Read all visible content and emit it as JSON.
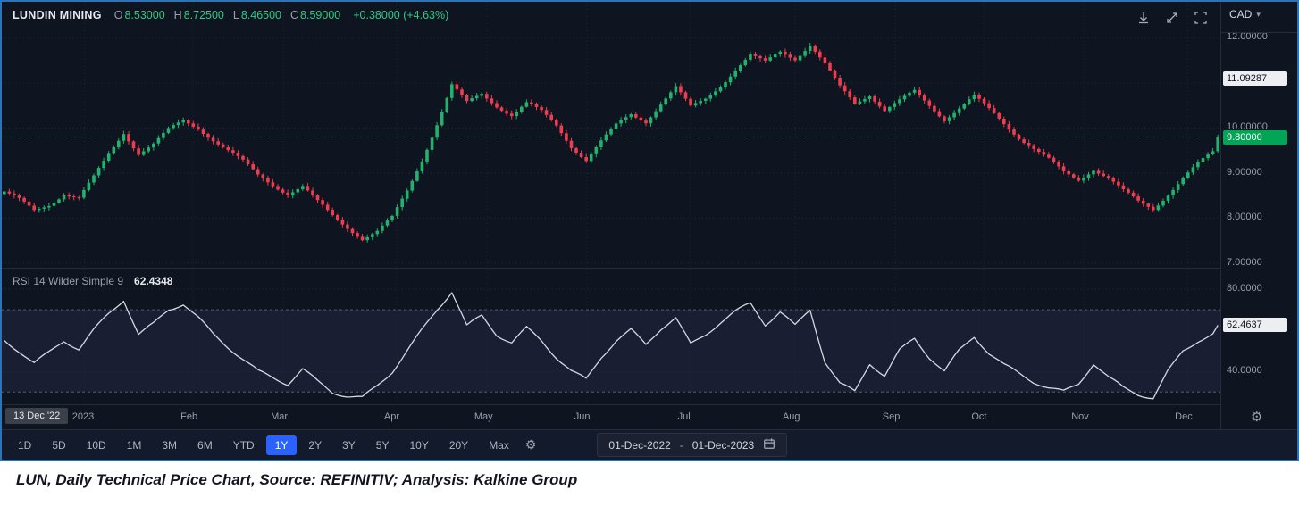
{
  "header": {
    "symbol": "LUNDIN MINING",
    "ohlc": [
      {
        "k": "O",
        "v": "8.53000"
      },
      {
        "k": "H",
        "v": "8.72500"
      },
      {
        "k": "L",
        "v": "8.46500"
      },
      {
        "k": "C",
        "v": "8.59000"
      }
    ],
    "change": "+0.38000 (+4.63%)",
    "currency": "CAD"
  },
  "rsi_header": {
    "title": "RSI 14 Wilder Simple 9",
    "value": "62.4348"
  },
  "price_axis": {
    "ticks": [
      {
        "label": "12.00000",
        "value": 12
      },
      {
        "label": "10.00000",
        "value": 10
      },
      {
        "label": "9.00000",
        "value": 9
      },
      {
        "label": "8.00000",
        "value": 8
      },
      {
        "label": "7.00000",
        "value": 7
      }
    ],
    "marker": {
      "label": "11.09287",
      "value": 11.09287
    },
    "last": {
      "label": "9.80000",
      "value": 9.8
    }
  },
  "rsi_axis": {
    "ticks": [
      {
        "label": "80.0000",
        "value": 80
      },
      {
        "label": "40.0000",
        "value": 40
      }
    ],
    "last": {
      "label": "62.4637",
      "value": 62.4637
    }
  },
  "time_axis": {
    "crosshair": "13 Dec '22",
    "labels": [
      {
        "t": "2023",
        "f": 0.068
      },
      {
        "t": "Feb",
        "f": 0.157
      },
      {
        "t": "Mar",
        "f": 0.231
      },
      {
        "t": "Apr",
        "f": 0.324
      },
      {
        "t": "May",
        "f": 0.398
      },
      {
        "t": "Jun",
        "f": 0.48
      },
      {
        "t": "Jul",
        "f": 0.565
      },
      {
        "t": "Aug",
        "f": 0.651
      },
      {
        "t": "Sep",
        "f": 0.733
      },
      {
        "t": "Oct",
        "f": 0.806
      },
      {
        "t": "Nov",
        "f": 0.888
      },
      {
        "t": "Dec",
        "f": 0.973
      }
    ]
  },
  "toolbar": {
    "periods": [
      "1D",
      "5D",
      "10D",
      "1M",
      "3M",
      "6M",
      "YTD",
      "1Y",
      "2Y",
      "3Y",
      "5Y",
      "10Y",
      "20Y",
      "Max"
    ],
    "active": "1Y",
    "date_from": "01-Dec-2022",
    "date_sep": "-",
    "date_to": "01-Dec-2023"
  },
  "caption": "LUN, Daily Technical Price Chart, Source: REFINITIV; Analysis: Kalkine Group",
  "colors": {
    "up": "#23b26d",
    "down": "#ef3d4f",
    "accent": "#2962ff",
    "last_badge": "#00a556",
    "rsi_line": "#d6d9e0",
    "background": "#0e1420"
  },
  "chart_data": {
    "type": "candlestick",
    "title": "LUNDIN MINING daily price, CAD, 13-Dec-2022 to 01-Dec-2023",
    "x_unit": "trading-day index from 13-Dec-2022 (anchors sampled every 3 trading days)",
    "n_days": 245,
    "anchor_step": 3,
    "ylim": [
      6.9,
      12.8
    ],
    "open_first": 8.53,
    "last_close": 9.8,
    "close_anchors": [
      8.59,
      8.4,
      8.15,
      8.3,
      8.55,
      8.45,
      8.9,
      9.4,
      9.9,
      9.45,
      9.65,
      9.95,
      10.15,
      10.0,
      9.75,
      9.5,
      9.25,
      8.95,
      8.75,
      8.55,
      8.7,
      8.35,
      8.05,
      7.8,
      7.55,
      7.7,
      8.0,
      8.6,
      9.3,
      10.1,
      10.95,
      10.55,
      10.75,
      10.5,
      10.3,
      10.55,
      10.35,
      10.05,
      9.6,
      9.3,
      9.7,
      10.05,
      10.3,
      10.15,
      10.55,
      10.9,
      10.45,
      10.65,
      10.95,
      11.3,
      11.6,
      11.45,
      11.7,
      11.55,
      11.85,
      11.4,
      10.9,
      10.55,
      10.75,
      10.4,
      10.6,
      10.8,
      10.5,
      10.2,
      10.45,
      10.7,
      10.4,
      10.1,
      9.8,
      9.55,
      9.3,
      9.0,
      8.85,
      9.1,
      8.9,
      8.6,
      8.35,
      8.2,
      8.55,
      8.9,
      9.2,
      9.45
    ],
    "rsi": {
      "type": "line",
      "name": "RSI 14 Wilder Simple 9",
      "ylim": [
        24,
        90
      ],
      "band": [
        30,
        70
      ],
      "last": 62.46,
      "anchors": [
        55,
        50,
        44,
        49,
        55,
        51,
        60,
        68,
        75,
        58,
        63,
        70,
        73,
        66,
        58,
        52,
        46,
        40,
        37,
        34,
        41,
        35,
        30,
        28,
        27,
        33,
        40,
        50,
        60,
        70,
        79,
        62,
        67,
        58,
        54,
        61,
        55,
        47,
        40,
        36,
        47,
        55,
        60,
        53,
        61,
        66,
        53,
        58,
        64,
        69,
        73,
        63,
        69,
        62,
        70,
        45,
        34,
        30,
        44,
        38,
        50,
        56,
        47,
        40,
        50,
        57,
        49,
        43,
        39,
        35,
        32,
        30,
        34,
        44,
        37,
        32,
        29,
        27,
        40,
        50,
        55,
        58
      ]
    }
  }
}
